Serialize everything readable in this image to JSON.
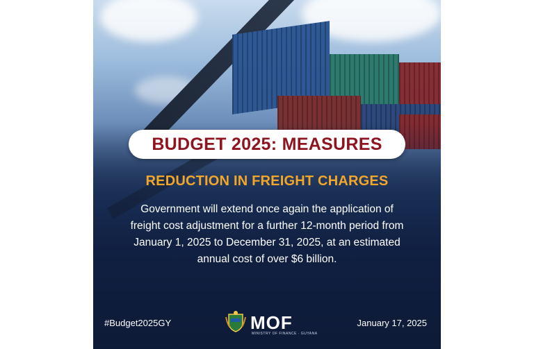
{
  "headline": "BUDGET 2025: MEASURES",
  "subtitle": "REDUCTION IN FREIGHT CHARGES",
  "body_lines": [
    "Government will extend once again the application of",
    "freight cost adjustment for a further 12-month period from",
    "January 1, 2025 to December 31, 2025, at an estimated",
    "annual cost of over $6 billion."
  ],
  "hashtag": "#Budget2025GY",
  "date": "January 17, 2025",
  "logo": {
    "text": "MOF",
    "subtext": "MINISTRY OF FINANCE · GUYANA",
    "icon": "coat-of-arms-icon"
  },
  "colors": {
    "headline": "#8e1420",
    "subtitle": "#f2a72b",
    "body": "#ffffff",
    "background_bottom": "#13264a"
  }
}
